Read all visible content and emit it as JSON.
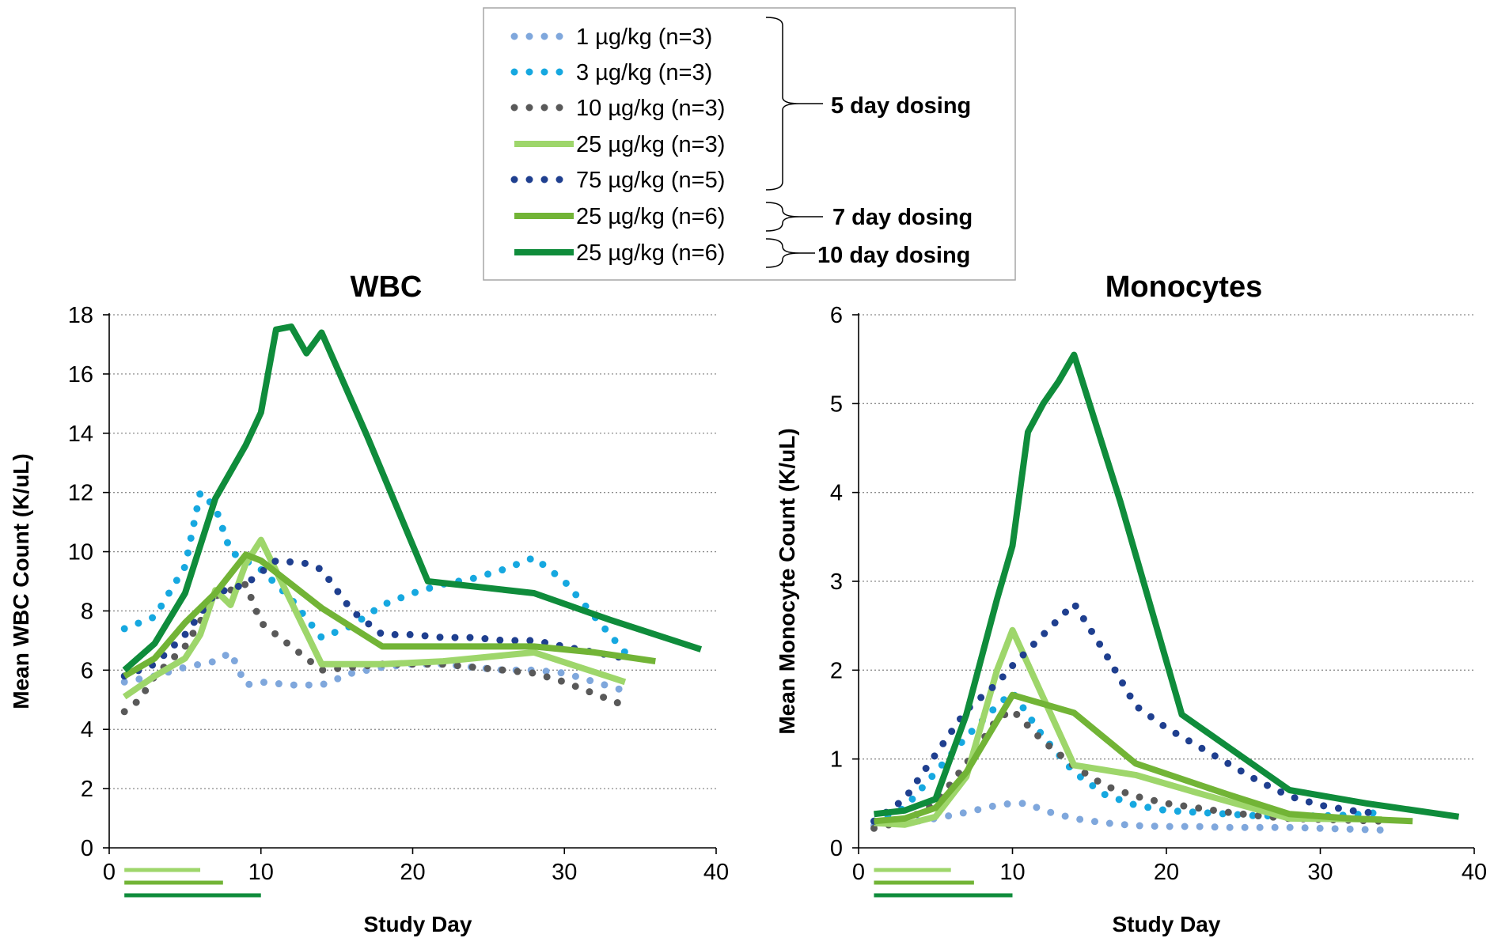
{
  "legend": {
    "entries": [
      {
        "label": "1 µg/kg (n=3)",
        "color": "#7fa7dc",
        "style": "dotted"
      },
      {
        "label": "3 µg/kg (n=3)",
        "color": "#16a8e0",
        "style": "dotted"
      },
      {
        "label": "10 µg/kg (n=3)",
        "color": "#595959",
        "style": "dotted"
      },
      {
        "label": "25 µg/kg (n=3)",
        "color": "#9ed66b",
        "style": "solid"
      },
      {
        "label": "75 µg/kg (n=5)",
        "color": "#1f3f8f",
        "style": "dotted"
      },
      {
        "label": "25 µg/kg (n=6)",
        "color": "#72b436",
        "style": "solid"
      },
      {
        "label": "25 µg/kg (n=6)",
        "color": "#0f8c3b",
        "style": "solid"
      }
    ],
    "groups": [
      "5 day dosing",
      "7 day dosing",
      "10 day dosing"
    ]
  },
  "chart_data": [
    {
      "type": "line",
      "title": "WBC",
      "xlabel": "Study Day",
      "ylabel": "Mean WBC Count (K/uL)",
      "xlim": [
        0,
        40
      ],
      "ylim": [
        0,
        18
      ],
      "xticks": [
        0,
        10,
        20,
        30,
        40
      ],
      "yticks": [
        0,
        2,
        4,
        6,
        8,
        10,
        12,
        14,
        16,
        18
      ],
      "grid": true,
      "series": [
        {
          "name": "1 µg/kg (n=3)",
          "color": "#7fa7dc",
          "style": "dotted",
          "x": [
            1,
            3,
            5,
            6,
            7,
            8,
            9,
            10,
            12,
            14,
            16,
            18,
            20,
            22,
            24,
            26,
            28,
            30,
            32,
            34
          ],
          "y": [
            5.6,
            5.8,
            6.1,
            6.2,
            6.3,
            6.6,
            5.5,
            5.6,
            5.5,
            5.5,
            5.9,
            6.1,
            6.2,
            6.2,
            6.1,
            6.0,
            6.0,
            5.9,
            5.6,
            5.3
          ]
        },
        {
          "name": "3 µg/kg (n=3)",
          "color": "#16a8e0",
          "style": "dotted",
          "x": [
            1,
            3,
            5,
            6,
            7,
            8,
            10,
            12,
            14,
            16,
            18,
            20,
            22,
            24,
            26,
            28,
            30,
            32,
            34
          ],
          "y": [
            7.4,
            7.8,
            9.5,
            12.0,
            11.5,
            10.0,
            9.4,
            8.4,
            7.1,
            7.5,
            8.2,
            8.6,
            8.9,
            9.1,
            9.4,
            9.8,
            9.0,
            7.8,
            6.6
          ]
        },
        {
          "name": "10 µg/kg (n=3)",
          "color": "#595959",
          "style": "dotted",
          "x": [
            1,
            2,
            3,
            5,
            7,
            9,
            10,
            12,
            14,
            16,
            18,
            20,
            22,
            24,
            26,
            28,
            30,
            32,
            34
          ],
          "y": [
            4.6,
            5.0,
            5.8,
            6.8,
            8.5,
            8.9,
            7.6,
            6.8,
            6.0,
            6.1,
            6.2,
            6.2,
            6.2,
            6.1,
            6.0,
            5.9,
            5.6,
            5.2,
            4.8
          ]
        },
        {
          "name": "25 µg/kg (n=3)",
          "color": "#9ed66b",
          "style": "solid",
          "x": [
            1,
            3,
            5,
            6,
            7,
            8,
            9,
            10,
            14,
            18,
            22,
            28,
            34
          ],
          "y": [
            5.1,
            5.8,
            6.4,
            7.2,
            8.7,
            8.2,
            9.6,
            10.4,
            6.2,
            6.2,
            6.3,
            6.6,
            5.6
          ]
        },
        {
          "name": "75 µg/kg (n=5)",
          "color": "#1f3f8f",
          "style": "dotted",
          "x": [
            1,
            3,
            5,
            7,
            9,
            11,
            13,
            14,
            16,
            18,
            20,
            22,
            24,
            26,
            28,
            30,
            32,
            34
          ],
          "y": [
            5.8,
            6.2,
            7.2,
            8.6,
            8.9,
            9.7,
            9.6,
            9.4,
            8.0,
            7.2,
            7.2,
            7.1,
            7.1,
            7.0,
            7.0,
            6.8,
            6.6,
            6.4
          ]
        },
        {
          "name": "25 µg/kg (n=6)",
          "color": "#72b436",
          "style": "solid",
          "x": [
            1,
            3,
            5,
            7,
            9,
            10,
            14,
            18,
            24,
            28,
            32,
            36
          ],
          "y": [
            5.8,
            6.4,
            7.6,
            8.6,
            9.9,
            9.7,
            8.1,
            6.8,
            6.8,
            6.8,
            6.6,
            6.3
          ]
        },
        {
          "name": "25 µg/kg (n=6)",
          "color": "#0f8c3b",
          "style": "solid",
          "x": [
            1,
            3,
            5,
            7,
            9,
            10,
            11,
            12,
            13,
            14,
            17,
            21,
            28,
            33,
            39
          ],
          "y": [
            6.0,
            6.9,
            8.6,
            11.8,
            13.6,
            14.7,
            17.5,
            17.6,
            16.7,
            17.4,
            13.9,
            9.0,
            8.6,
            7.7,
            6.7
          ]
        }
      ],
      "dosing_bars": [
        {
          "start_day": 1,
          "end_day": 6,
          "color": "#9ed66b"
        },
        {
          "start_day": 1,
          "end_day": 7.5,
          "color": "#72b436"
        },
        {
          "start_day": 1,
          "end_day": 10,
          "color": "#0f8c3b"
        }
      ]
    },
    {
      "type": "line",
      "title": "Monocytes",
      "xlabel": "Study Day",
      "ylabel": "Mean Monocyte Count (K/uL)",
      "xlim": [
        0,
        40
      ],
      "ylim": [
        0,
        6
      ],
      "xticks": [
        0,
        10,
        20,
        30,
        40
      ],
      "yticks": [
        0,
        1,
        2,
        3,
        4,
        5,
        6
      ],
      "grid": true,
      "series": [
        {
          "name": "1 µg/kg (n=3)",
          "color": "#7fa7dc",
          "style": "dotted",
          "x": [
            1,
            3,
            5,
            7,
            9,
            10,
            11,
            12,
            14,
            16,
            18,
            20,
            22,
            24,
            26,
            28,
            30,
            32,
            34
          ],
          "y": [
            0.25,
            0.28,
            0.33,
            0.4,
            0.48,
            0.5,
            0.5,
            0.42,
            0.33,
            0.28,
            0.25,
            0.24,
            0.24,
            0.23,
            0.23,
            0.23,
            0.22,
            0.21,
            0.2
          ]
        },
        {
          "name": "3 µg/kg (n=3)",
          "color": "#16a8e0",
          "style": "dotted",
          "x": [
            1,
            3,
            5,
            7,
            9,
            10,
            12,
            14,
            16,
            18,
            20,
            22,
            24,
            26,
            28,
            30,
            32,
            34
          ],
          "y": [
            0.3,
            0.45,
            0.85,
            1.25,
            1.6,
            1.75,
            1.25,
            0.85,
            0.6,
            0.48,
            0.42,
            0.4,
            0.38,
            0.36,
            0.36,
            0.36,
            0.37,
            0.4
          ]
        },
        {
          "name": "10 µg/kg (n=3)",
          "color": "#595959",
          "style": "dotted",
          "x": [
            1,
            3,
            5,
            7,
            9,
            10,
            12,
            14,
            16,
            18,
            20,
            22,
            24,
            26,
            28,
            30,
            32,
            34
          ],
          "y": [
            0.22,
            0.3,
            0.5,
            0.95,
            1.45,
            1.55,
            1.2,
            0.92,
            0.7,
            0.58,
            0.5,
            0.45,
            0.4,
            0.36,
            0.33,
            0.32,
            0.31,
            0.3
          ]
        },
        {
          "name": "25 µg/kg (n=3)",
          "color": "#9ed66b",
          "style": "solid",
          "x": [
            1,
            3,
            5,
            7,
            9,
            10,
            14,
            18,
            22,
            28,
            34
          ],
          "y": [
            0.28,
            0.26,
            0.35,
            0.8,
            2.0,
            2.45,
            0.93,
            0.82,
            0.62,
            0.33,
            0.32
          ]
        },
        {
          "name": "75 µg/kg (n=5)",
          "color": "#1f3f8f",
          "style": "dotted",
          "x": [
            1,
            3,
            5,
            7,
            9,
            10,
            12,
            14,
            16,
            18,
            20,
            22,
            24,
            26,
            28,
            30,
            32,
            34
          ],
          "y": [
            0.3,
            0.55,
            1.05,
            1.55,
            1.85,
            2.05,
            2.4,
            2.75,
            2.2,
            1.6,
            1.35,
            1.15,
            0.95,
            0.75,
            0.58,
            0.48,
            0.42,
            0.38
          ]
        },
        {
          "name": "25 µg/kg (n=6)",
          "color": "#72b436",
          "style": "solid",
          "x": [
            1,
            3,
            5,
            7,
            10,
            14,
            18,
            24,
            28,
            32,
            36
          ],
          "y": [
            0.3,
            0.33,
            0.45,
            0.85,
            1.72,
            1.52,
            0.95,
            0.6,
            0.38,
            0.33,
            0.3
          ]
        },
        {
          "name": "25 µg/kg (n=6)",
          "color": "#0f8c3b",
          "style": "solid",
          "x": [
            1,
            3,
            5,
            7,
            9,
            10,
            11,
            12,
            13,
            14,
            17,
            21,
            28,
            33,
            39
          ],
          "y": [
            0.38,
            0.42,
            0.55,
            1.5,
            2.8,
            3.4,
            4.68,
            5.0,
            5.25,
            5.55,
            3.9,
            1.5,
            0.65,
            0.5,
            0.35
          ]
        }
      ],
      "dosing_bars": [
        {
          "start_day": 1,
          "end_day": 6,
          "color": "#9ed66b"
        },
        {
          "start_day": 1,
          "end_day": 7.5,
          "color": "#72b436"
        },
        {
          "start_day": 1,
          "end_day": 10,
          "color": "#0f8c3b"
        }
      ]
    }
  ]
}
